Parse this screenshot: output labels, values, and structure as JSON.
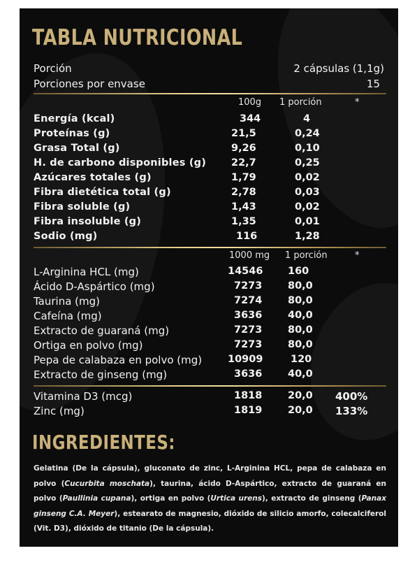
{
  "title": "TABLA NUTRICIONAL",
  "serving": {
    "portion_label": "Porción",
    "portion_value": "2 cápsulas (1,1g)",
    "per_container_label": "Porciones por envase",
    "per_container_value": "15"
  },
  "nutrition_header": {
    "col1": "100g",
    "col2": "1 porción",
    "col3": "*"
  },
  "nutrition_rows": [
    {
      "label": "Energía (kcal)",
      "v100": "344",
      "vportion": "4"
    },
    {
      "label": "Proteínas (g)",
      "v100": "21,5",
      "vportion": "0,24"
    },
    {
      "label": "Grasa Total (g)",
      "v100": "9,26",
      "vportion": "0,10"
    },
    {
      "label": "H. de carbono disponibles (g)",
      "v100": "22,7",
      "vportion": "0,25"
    },
    {
      "label": "Azúcares totales (g)",
      "v100": "1,79",
      "vportion": "0,02"
    },
    {
      "label": "Fibra dietética total (g)",
      "v100": "2,78",
      "vportion": "0,03"
    },
    {
      "label": "Fibra soluble (g)",
      "v100": "1,43",
      "vportion": "0,02"
    },
    {
      "label": "Fibra insoluble (g)",
      "v100": "1,35",
      "vportion": "0,01"
    },
    {
      "label": "Sodio (mg)",
      "v100": "116",
      "vportion": "1,28"
    }
  ],
  "active_header": {
    "col1": "1000 mg",
    "col2": "1 porción",
    "col3": "*"
  },
  "active_rows": [
    {
      "label": "L-Arginina HCL (mg)",
      "v1000": "14546",
      "vportion": "160"
    },
    {
      "label": "Ácido D-Aspártico (mg)",
      "v1000": "7273",
      "vportion": "80,0"
    },
    {
      "label": "Taurina (mg)",
      "v1000": "7274",
      "vportion": "80,0"
    },
    {
      "label": "Cafeína (mg)",
      "v1000": "3636",
      "vportion": "40,0"
    },
    {
      "label": "Extracto de guaraná (mg)",
      "v1000": "7273",
      "vportion": "80,0"
    },
    {
      "label": "Ortiga en polvo (mg)",
      "v1000": "7273",
      "vportion": "80,0"
    },
    {
      "label": "Pepa de calabaza en polvo (mg)",
      "v1000": "10909",
      "vportion": "120"
    },
    {
      "label": "Extracto de ginseng (mg)",
      "v1000": "3636",
      "vportion": "40,0"
    }
  ],
  "vitamin_rows": [
    {
      "label": "Vitamina D3 (mcg)",
      "v1000": "1818",
      "vportion": "20,0",
      "pct": "400%"
    },
    {
      "label": "Zinc (mg)",
      "v1000": "1819",
      "vportion": "20,0",
      "pct": "133%"
    }
  ],
  "ingredients": {
    "title": "INGREDIENTES:",
    "parts": [
      "Gelatina (De la cápsula), gluconato de zinc, L-Arginina HCL, pepa de calabaza en polvo (",
      "Cucurbita moschata",
      "), taurina, ácido D-Aspártico, extracto de guaraná en polvo (",
      "Paullinia cupana",
      "), ortiga en polvo (",
      "Urtica urens",
      "), extracto de ginseng (",
      "Panax ginseng C.A. Meyer",
      "), estearato de magnesio, dióxido de silicio amorfo, colecalciferol (Vit. D3), dióxido de titanio (De la cápsula)."
    ]
  }
}
